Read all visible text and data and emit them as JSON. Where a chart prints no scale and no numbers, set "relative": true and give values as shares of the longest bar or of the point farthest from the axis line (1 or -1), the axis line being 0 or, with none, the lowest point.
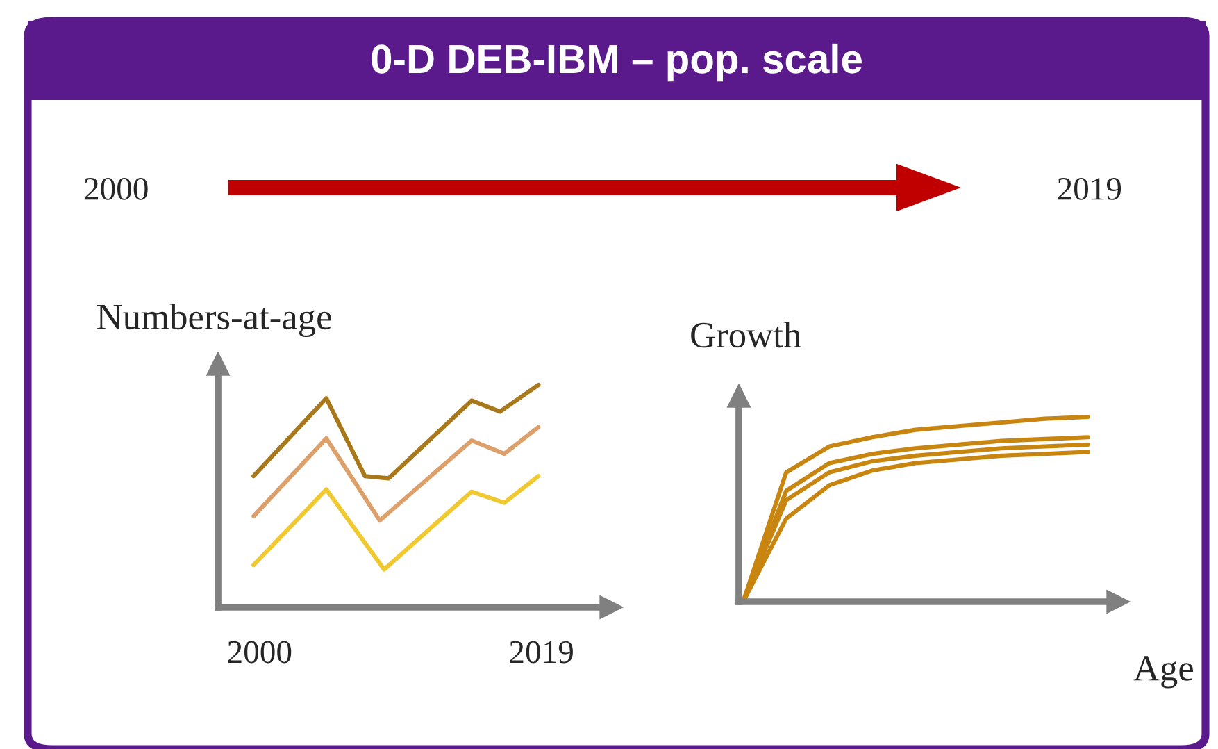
{
  "chart_data": [
    {
      "type": "line",
      "title": "0-D DEB-IBM – pop. scale",
      "annotations": [
        "2000",
        "2019"
      ],
      "ylabel": "Numbers-at-age",
      "relative": true,
      "xlim": [
        1997.2,
        2023.7
      ],
      "xticks": [
        2000,
        2019
      ],
      "grid": false,
      "legend": false,
      "marker": "none",
      "line_style": "solid",
      "series": [
        {
          "color": "#a8781a",
          "x": [
            1999.6,
            2004.5,
            2007.1,
            2008.7,
            2014.3,
            2016.2,
            2018.8
          ],
          "values": [
            0.59,
            0.94,
            0.59,
            0.58,
            0.93,
            0.88,
            1.0
          ]
        },
        {
          "color": "#dea06a",
          "x": [
            1999.6,
            2004.5,
            2008.1,
            2014.3,
            2016.5,
            2018.8
          ],
          "values": [
            0.41,
            0.76,
            0.39,
            0.75,
            0.69,
            0.81
          ]
        },
        {
          "color": "#f0c830",
          "x": [
            1999.6,
            2004.5,
            2008.4,
            2014.3,
            2016.5,
            2018.8
          ],
          "values": [
            0.19,
            0.53,
            0.17,
            0.52,
            0.47,
            0.59
          ]
        }
      ]
    },
    {
      "type": "line",
      "ylabel": "Growth",
      "xlabel": "Age",
      "relative": true,
      "categories": [
        null,
        null,
        null,
        null,
        null,
        null,
        null,
        null,
        null
      ],
      "grid": false,
      "legend": false,
      "marker": "none",
      "line_style": "solid",
      "series": [
        {
          "color": "#c8850f",
          "values": [
            0,
            0.7,
            0.84,
            0.89,
            0.93,
            0.95,
            0.97,
            0.99,
            1.0
          ]
        },
        {
          "color": "#c8850f",
          "values": [
            0,
            0.6,
            0.75,
            0.8,
            0.83,
            0.85,
            0.87,
            0.88,
            0.89
          ]
        },
        {
          "color": "#c8850f",
          "values": [
            0,
            0.55,
            0.7,
            0.76,
            0.79,
            0.81,
            0.83,
            0.84,
            0.85
          ]
        },
        {
          "color": "#c8850f",
          "values": [
            0,
            0.45,
            0.63,
            0.71,
            0.75,
            0.77,
            0.79,
            0.8,
            0.81
          ]
        }
      ]
    }
  ]
}
